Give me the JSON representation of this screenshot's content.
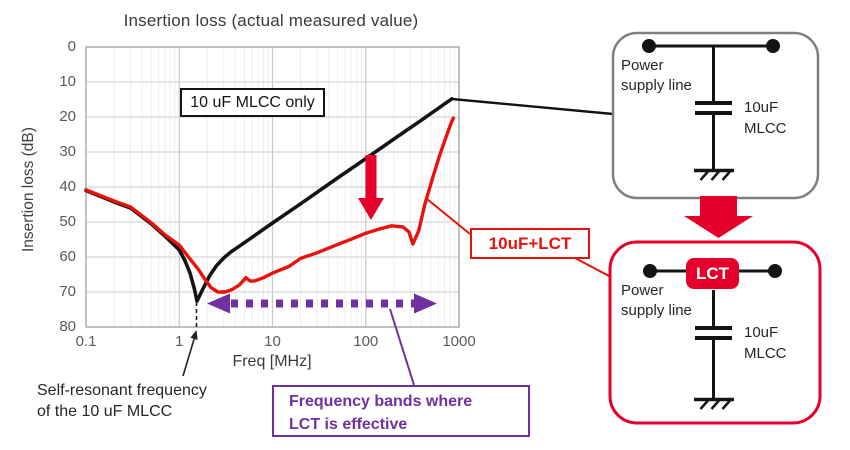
{
  "chart": {
    "title": "Insertion loss (actual measured value)",
    "ylabel": "Insertion loss (dB)",
    "xlabel": "Freq [MHz]",
    "y_ticks": [
      "0",
      "10",
      "20",
      "30",
      "40",
      "50",
      "60",
      "70",
      "80"
    ],
    "x_ticks": [
      "0.1",
      "1",
      "10",
      "100",
      "1000"
    ]
  },
  "annotations": {
    "mlcc_only_label": "10 uF MLCC only",
    "lct_curve_label": "10uF+LCT",
    "self_resonant_line1": "Self-resonant frequency",
    "self_resonant_line2": "of the 10 uF MLCC",
    "freq_band_line1": "Frequency bands where",
    "freq_band_line2": "LCT is effective"
  },
  "circuit_top": {
    "line_label_line1": "Power",
    "line_label_line2": "supply line",
    "cap_label_line1": "10uF",
    "cap_label_line2": "MLCC"
  },
  "circuit_bottom": {
    "lct_badge": "LCT",
    "line_label_line1": "Power",
    "line_label_line2": "supply line",
    "cap_label_line1": "10uF",
    "cap_label_line2": "MLCC"
  },
  "colors": {
    "black_curve": "#141414",
    "red_curve": "#e8120c",
    "crimson_accent": "#e4002b",
    "purple_accent": "#70309f",
    "gray_box_border": "#7f7f7f",
    "tick_text": "#595959"
  },
  "chart_data": {
    "type": "line",
    "title": "Insertion loss (actual measured value)",
    "xlabel": "Freq [MHz]",
    "ylabel": "Insertion loss (dB)",
    "x_scale": "log",
    "xlim": [
      0.1,
      1000
    ],
    "y_axis": {
      "range": [
        0,
        80
      ],
      "inverted": true,
      "note": "0 dB at top, 80 dB at bottom"
    },
    "grid": true,
    "series": [
      {
        "name": "10 uF MLCC only",
        "color": "#141414",
        "points": [
          [
            0.1,
            41
          ],
          [
            0.2,
            44.3
          ],
          [
            0.3,
            46
          ],
          [
            0.5,
            50.5
          ],
          [
            0.7,
            54
          ],
          [
            1.0,
            58
          ],
          [
            1.15,
            61
          ],
          [
            1.3,
            64.5
          ],
          [
            1.45,
            69
          ],
          [
            1.55,
            72.6
          ],
          [
            1.8,
            69
          ],
          [
            2.1,
            65.5
          ],
          [
            2.5,
            62.5
          ],
          [
            3.0,
            60.3
          ],
          [
            3.6,
            58.5
          ],
          [
            5.0,
            55.9
          ],
          [
            10,
            50.3
          ],
          [
            20,
            44.8
          ],
          [
            50,
            37.4
          ],
          [
            100,
            31.9
          ],
          [
            200,
            26.3
          ],
          [
            400,
            20.8
          ],
          [
            840,
            14.8
          ]
        ]
      },
      {
        "name": "10uF+LCT",
        "color": "#e8120c",
        "points": [
          [
            0.1,
            40.8
          ],
          [
            0.2,
            44
          ],
          [
            0.3,
            45.7
          ],
          [
            0.5,
            50.2
          ],
          [
            0.7,
            53.6
          ],
          [
            1.0,
            56.6
          ],
          [
            1.3,
            60.5
          ],
          [
            1.6,
            63.5
          ],
          [
            1.9,
            66.5
          ],
          [
            2.2,
            68.8
          ],
          [
            2.6,
            70
          ],
          [
            3.1,
            70
          ],
          [
            3.7,
            69.3
          ],
          [
            4.4,
            68
          ],
          [
            5.2,
            65.9
          ],
          [
            5.8,
            66.9
          ],
          [
            6.5,
            66.8
          ],
          [
            8,
            65.9
          ],
          [
            10,
            64.6
          ],
          [
            15,
            62.7
          ],
          [
            20,
            60.4
          ],
          [
            30,
            58.8
          ],
          [
            50,
            56.4
          ],
          [
            70,
            54.9
          ],
          [
            100,
            53.2
          ],
          [
            140,
            52
          ],
          [
            190,
            51.1
          ],
          [
            250,
            51.4
          ],
          [
            290,
            52.8
          ],
          [
            320,
            56.3
          ],
          [
            370,
            52.5
          ],
          [
            430,
            45
          ],
          [
            520,
            37.5
          ],
          [
            620,
            31
          ],
          [
            720,
            26
          ],
          [
            820,
            21.8
          ],
          [
            870,
            20.3
          ]
        ]
      }
    ],
    "annotations_data": {
      "self_resonant_frequency_mhz": 1.55,
      "effective_band_mhz": [
        2.5,
        500
      ],
      "improvement_arrow_at_mhz": 120
    }
  }
}
